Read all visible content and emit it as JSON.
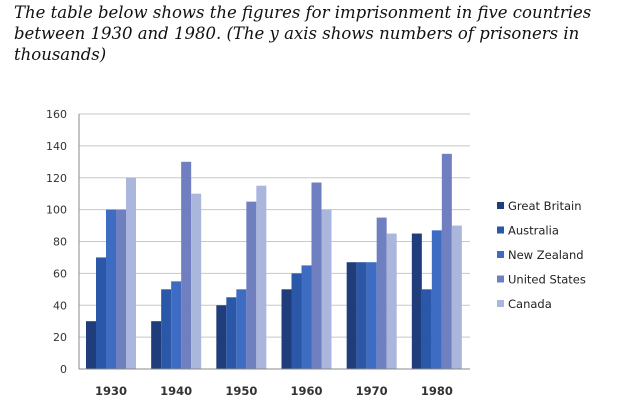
{
  "caption": "The table below shows the figures for imprisonment in five countries between 1930 and 1980. (The y axis shows numbers of prisoners in thousands)",
  "chart_data": {
    "type": "bar",
    "title": "",
    "xlabel": "",
    "ylabel": "",
    "categories": [
      "1930",
      "1940",
      "1950",
      "1960",
      "1970",
      "1980"
    ],
    "ylim": [
      0,
      160
    ],
    "yticks": [
      0,
      20,
      40,
      60,
      80,
      100,
      120,
      140,
      160
    ],
    "grid": true,
    "legend_position": "right",
    "series": [
      {
        "name": "Great Britain",
        "color": "#1f3d7a",
        "values": [
          30,
          30,
          40,
          50,
          67,
          85
        ]
      },
      {
        "name": "Australia",
        "color": "#2a57a8",
        "values": [
          70,
          50,
          45,
          60,
          67,
          50
        ]
      },
      {
        "name": "New Zealand",
        "color": "#3d6cc2",
        "values": [
          100,
          55,
          50,
          65,
          67,
          87
        ]
      },
      {
        "name": "United States",
        "color": "#6f7fc0",
        "values": [
          100,
          130,
          105,
          117,
          95,
          135
        ]
      },
      {
        "name": "Canada",
        "color": "#aab6db",
        "values": [
          120,
          110,
          115,
          100,
          85,
          90
        ]
      }
    ]
  }
}
